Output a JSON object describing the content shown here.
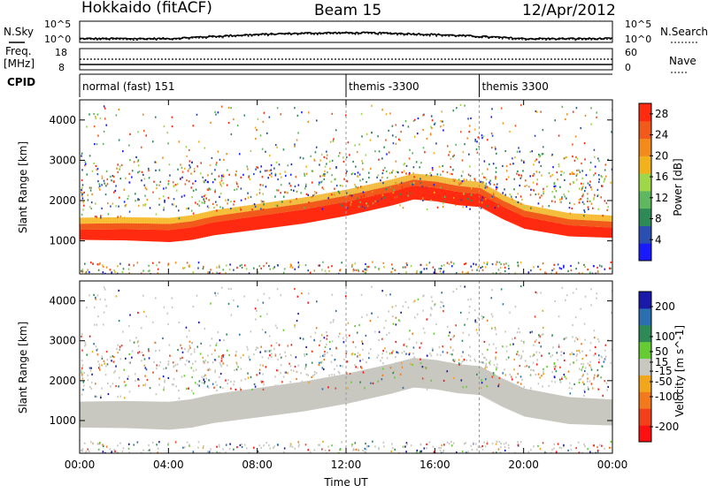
{
  "header": {
    "station": "Hokkaido (fitACF)",
    "beam": "Beam 15",
    "date": "12/Apr/2012"
  },
  "side_labels": {
    "nsky": "N.Sky",
    "freq_line1": "Freq.",
    "freq_line2": "[MHz]",
    "cpid": "CPID",
    "nsearch": "N.Search",
    "nave": "Nave"
  },
  "strip_ticks": {
    "noise_left": [
      "10^5",
      "10^0"
    ],
    "noise_right": [
      "10^5",
      "10^0"
    ],
    "freq_left": [
      "18",
      "8"
    ],
    "freq_right": [
      "60",
      "0"
    ]
  },
  "cpid_segments": [
    {
      "label": "normal (fast) 151",
      "start_hour": 0
    },
    {
      "label": "themis -3300",
      "start_hour": 12
    },
    {
      "label": "themis 3300",
      "start_hour": 18
    }
  ],
  "colors": {
    "power": [
      "#1a1aff",
      "#2a4fb0",
      "#2e8b57",
      "#5fb85f",
      "#9fd64a",
      "#f2b21c",
      "#f28a1c",
      "#f25a1c",
      "#ff2a10"
    ],
    "velocity_pos": [
      "#1a1aaa",
      "#2a6fb0",
      "#2e8b57",
      "#66cc33"
    ],
    "velocity_gray": "#c8c8c0",
    "velocity_neg": [
      "#f2a61c",
      "#f27a1c",
      "#f2401c",
      "#ff1010"
    ]
  },
  "chart_data": [
    {
      "type": "heatmap",
      "title": "",
      "xlabel": "Time UT",
      "ylabel": "Slant Range [km]",
      "x_ticks": [
        "00:00",
        "04:00",
        "08:00",
        "12:00",
        "16:00",
        "20:00",
        "00:00"
      ],
      "x_range_hours": [
        0,
        24
      ],
      "y_ticks": [
        1000,
        2000,
        3000,
        4000
      ],
      "ylim": [
        180,
        4500
      ],
      "colorbar_label": "Power [dB]",
      "colorbar_ticks": [
        4,
        8,
        12,
        16,
        20,
        24,
        28
      ],
      "colorbar_range": [
        0,
        30
      ],
      "ground_scatter_band_km": {
        "hours": [
          0,
          2,
          4,
          5,
          6,
          8,
          10,
          12,
          14,
          15,
          16,
          17,
          18,
          19,
          20,
          22,
          24
        ],
        "center": [
          1150,
          1150,
          1120,
          1180,
          1300,
          1450,
          1600,
          1800,
          2050,
          2200,
          2150,
          2050,
          2000,
          1700,
          1450,
          1250,
          1200
        ]
      },
      "sporadic_scatter_ranges_km": [
        2000,
        2800
      ]
    },
    {
      "type": "heatmap",
      "title": "",
      "xlabel": "Time UT",
      "ylabel": "Slant Range [km]",
      "x_ticks": [
        "00:00",
        "04:00",
        "08:00",
        "12:00",
        "16:00",
        "20:00",
        "00:00"
      ],
      "y_ticks": [
        1000,
        2000,
        3000,
        4000
      ],
      "ylim": [
        180,
        4500
      ],
      "colorbar_label": "Velocity [m s^-1]",
      "colorbar_ticks": [
        200,
        100,
        50,
        15,
        -15,
        -50,
        -100,
        -200
      ],
      "colorbar_range": [
        -250,
        250
      ]
    }
  ]
}
